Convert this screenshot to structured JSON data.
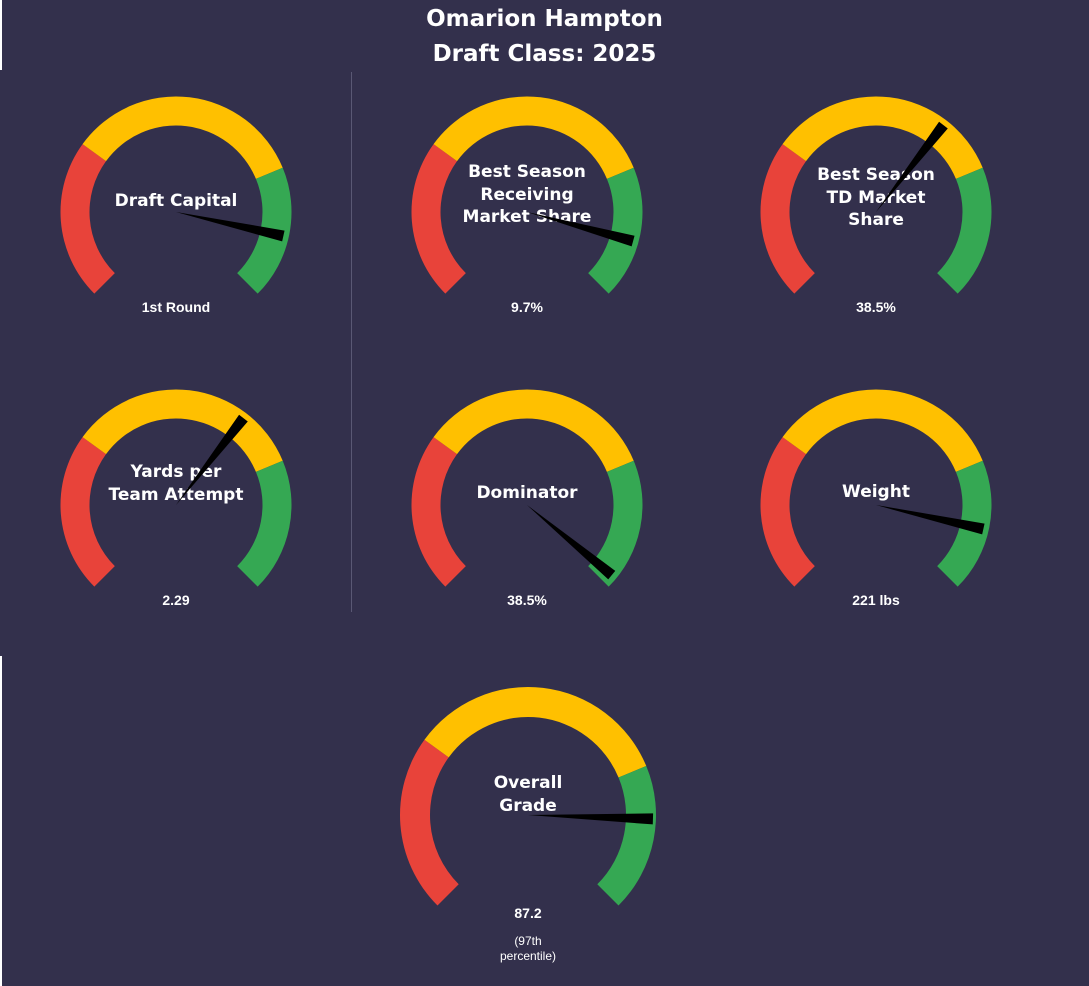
{
  "title": {
    "player_name": "Omarion Hampton",
    "draft_class": "Draft Class: 2025"
  },
  "colors": {
    "background": "#33304c",
    "low": "#e8433a",
    "mid": "#ffc000",
    "high": "#35a853",
    "needle": "#000000",
    "text": "#ffffff"
  },
  "chart_data": [
    {
      "type": "gauge",
      "id": "draft-capital",
      "label_lines": [
        "Draft Capital"
      ],
      "value_label": "1st Round",
      "needle_fraction": 0.88,
      "bands": [
        "low",
        "mid",
        "high"
      ],
      "min": 0,
      "max": 1
    },
    {
      "type": "gauge",
      "id": "receiving-share",
      "label_lines": [
        "Best Season",
        "Receiving",
        "Market Share"
      ],
      "value_label": "9.7%",
      "needle_fraction": 0.89,
      "bands": [
        "low",
        "mid",
        "high"
      ],
      "min": 0,
      "max": 1
    },
    {
      "type": "gauge",
      "id": "td-share",
      "label_lines": [
        "Best Season",
        "TD Market",
        "Share"
      ],
      "value_label": "38.5%",
      "needle_fraction": 0.64,
      "bands": [
        "low",
        "mid",
        "high"
      ],
      "min": 0,
      "max": 1
    },
    {
      "type": "gauge",
      "id": "yards-per-attempt",
      "label_lines": [
        "Yards per",
        "Team Attempt"
      ],
      "value_label": "2.29",
      "needle_fraction": 0.64,
      "bands": [
        "low",
        "mid",
        "high"
      ],
      "min": 0,
      "max": 1
    },
    {
      "type": "gauge",
      "id": "dominator",
      "label_lines": [
        "Dominator"
      ],
      "value_label": "38.5%",
      "needle_fraction": 0.98,
      "bands": [
        "low",
        "mid",
        "high"
      ],
      "min": 0,
      "max": 1
    },
    {
      "type": "gauge",
      "id": "weight",
      "label_lines": [
        "Weight"
      ],
      "value_label": "221 lbs",
      "needle_fraction": 0.88,
      "bands": [
        "low",
        "mid",
        "high"
      ],
      "min": 0,
      "max": 1
    },
    {
      "type": "gauge",
      "id": "overall-grade",
      "label_lines": [
        "Overall",
        "Grade"
      ],
      "value_label": "87.2",
      "sub_label_lines": [
        "(97th",
        "percentile)"
      ],
      "needle_fraction": 0.84,
      "bands": [
        "low",
        "mid",
        "high"
      ],
      "min": 0,
      "max": 1
    }
  ]
}
